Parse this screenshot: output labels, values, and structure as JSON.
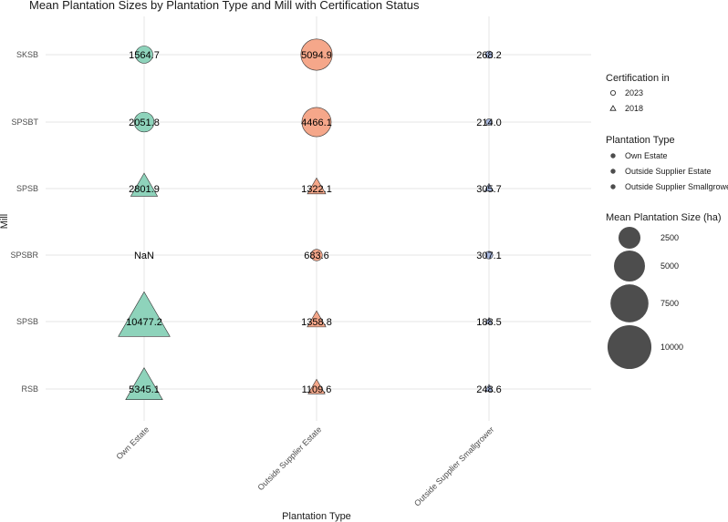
{
  "colors": {
    "own_estate": "#8ed3bb",
    "outside_supplier_estate": "#f5a78a",
    "outside_supplier_smallgrower": "#a8b8df",
    "legend_dot": "#4d4d4d"
  },
  "chart_data": {
    "type": "scatter",
    "title": "Mean Plantation Sizes by Plantation Type and Mill with Certification Status",
    "xlabel": "Plantation Type",
    "ylabel": "Mill",
    "categories_x": [
      "Own Estate",
      "Outside Supplier Estate",
      "Outside Supplier Smallgrower"
    ],
    "categories_y": [
      "SKSB",
      "SPSBT",
      "SPSB",
      "SPSBR",
      "SPSB",
      "RSB"
    ],
    "points": [
      {
        "x": "Own Estate",
        "mill": "SKSB",
        "value": 1564.7,
        "label": "1564.7",
        "cert": "2023"
      },
      {
        "x": "Outside Supplier Estate",
        "mill": "SKSB",
        "value": 5094.9,
        "label": "5094.9",
        "cert": "2023"
      },
      {
        "x": "Outside Supplier Smallgrower",
        "mill": "SKSB",
        "value": 268.2,
        "label": "268.2",
        "cert": "2023"
      },
      {
        "x": "Own Estate",
        "mill": "SPSBT",
        "value": 2051.8,
        "label": "2051.8",
        "cert": "2023"
      },
      {
        "x": "Outside Supplier Estate",
        "mill": "SPSBT",
        "value": 4466.1,
        "label": "4466.1",
        "cert": "2023"
      },
      {
        "x": "Outside Supplier Smallgrower",
        "mill": "SPSBT",
        "value": 214.0,
        "label": "214.0",
        "cert": "2023"
      },
      {
        "x": "Own Estate",
        "mill": "SPSB",
        "value": 2801.9,
        "label": "2801.9",
        "cert": "2018"
      },
      {
        "x": "Outside Supplier Estate",
        "mill": "SPSB",
        "value": 1322.1,
        "label": "1322.1",
        "cert": "2018"
      },
      {
        "x": "Outside Supplier Smallgrower",
        "mill": "SPSB",
        "value": 305.7,
        "label": "305.7",
        "cert": "2018"
      },
      {
        "x": "Own Estate",
        "mill": "SPSBR",
        "value": null,
        "label": "NaN",
        "cert": "2023"
      },
      {
        "x": "Outside Supplier Estate",
        "mill": "SPSBR",
        "value": 683.6,
        "label": "683.6",
        "cert": "2023"
      },
      {
        "x": "Outside Supplier Smallgrower",
        "mill": "SPSBR",
        "value": 307.1,
        "label": "307.1",
        "cert": "2023"
      },
      {
        "x": "Own Estate",
        "mill": "SPSB",
        "value": 10477.2,
        "label": "10477.2",
        "cert": "2018"
      },
      {
        "x": "Outside Supplier Estate",
        "mill": "SPSB",
        "value": 1358.8,
        "label": "1358.8",
        "cert": "2018"
      },
      {
        "x": "Outside Supplier Smallgrower",
        "mill": "SPSB",
        "value": 188.5,
        "label": "188.5",
        "cert": "2018"
      },
      {
        "x": "Own Estate",
        "mill": "RSB",
        "value": 5345.1,
        "label": "5345.1",
        "cert": "2018"
      },
      {
        "x": "Outside Supplier Estate",
        "mill": "RSB",
        "value": 1109.6,
        "label": "1109.6",
        "cert": "2018"
      },
      {
        "x": "Outside Supplier Smallgrower",
        "mill": "RSB",
        "value": 248.6,
        "label": "248.6",
        "cert": "2018"
      }
    ],
    "legend": {
      "certification": {
        "title": "Certification in",
        "items": [
          {
            "label": "2023",
            "shape": "circle"
          },
          {
            "label": "2018",
            "shape": "triangle"
          }
        ]
      },
      "plantation_type": {
        "title": "Plantation Type",
        "items": [
          "Own Estate",
          "Outside Supplier Estate",
          "Outside Supplier Smallgrower"
        ]
      },
      "size": {
        "title": "Mean Plantation Size (ha)",
        "items": [
          {
            "label": "2500",
            "value": 2500
          },
          {
            "label": "5000",
            "value": 5000
          },
          {
            "label": "7500",
            "value": 7500
          },
          {
            "label": "10000",
            "value": 10000
          }
        ]
      }
    },
    "size_range": [
      0,
      10477.2
    ]
  }
}
